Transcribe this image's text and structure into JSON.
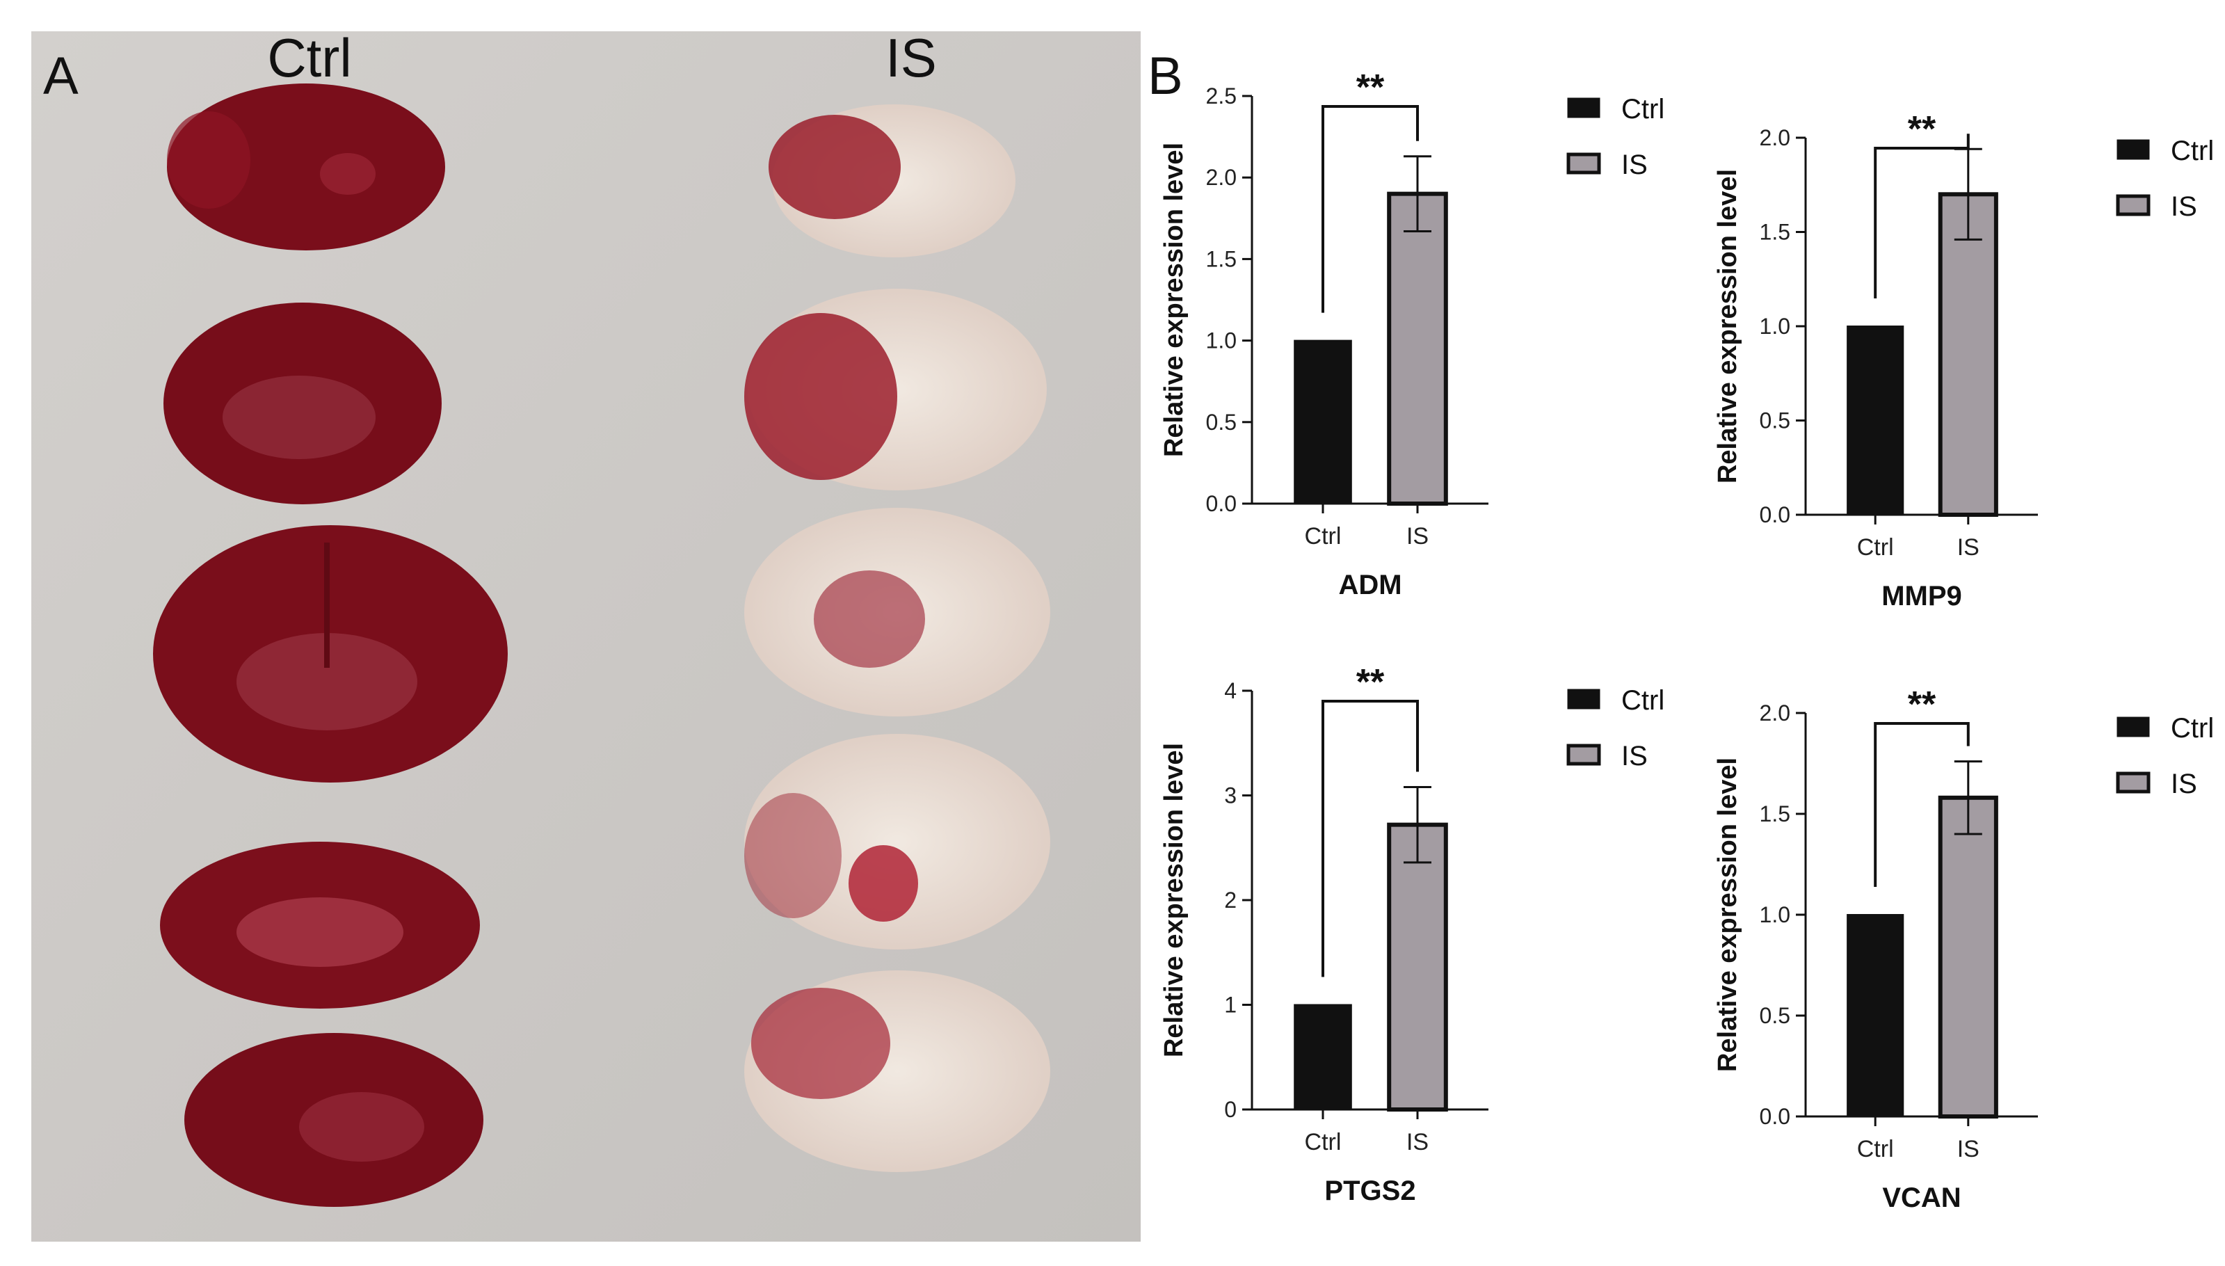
{
  "panel_a": {
    "letter": "A",
    "group_labels": [
      "Ctrl",
      "IS"
    ],
    "colors": {
      "background": "#ccc9c6",
      "healthy_tissue": "#7e0f1c",
      "infarct": "#ece3da"
    }
  },
  "panel_b": {
    "letter": "B"
  },
  "colors": {
    "ctrl_bar": "#111111",
    "is_bar": "#a39ca2",
    "axis": "#111111"
  },
  "chart_data": [
    {
      "type": "bar",
      "title": "ADM",
      "ylabel": "Relative expression level",
      "categories": [
        "Ctrl",
        "IS"
      ],
      "values": [
        1.0,
        1.9
      ],
      "errors": [
        0,
        0.23
      ],
      "ylim": [
        0,
        2.5
      ],
      "yticks": [
        "0.0",
        "0.5",
        "1.0",
        "1.5",
        "2.0",
        "2.5"
      ],
      "significance": "**",
      "legend": [
        "Ctrl",
        "IS"
      ]
    },
    {
      "type": "bar",
      "title": "MMP9",
      "ylabel": "Relative expression level",
      "categories": [
        "Ctrl",
        "IS"
      ],
      "values": [
        1.0,
        1.7
      ],
      "errors": [
        0,
        0.24
      ],
      "ylim": [
        0,
        2.0
      ],
      "yticks": [
        "0.0",
        "0.5",
        "1.0",
        "1.5",
        "2.0"
      ],
      "significance": "**",
      "legend": [
        "Ctrl",
        "IS"
      ]
    },
    {
      "type": "bar",
      "title": "PTGS2",
      "ylabel": "Relative expression level",
      "categories": [
        "Ctrl",
        "IS"
      ],
      "values": [
        1.0,
        2.72
      ],
      "errors": [
        0,
        0.36
      ],
      "ylim": [
        0,
        4
      ],
      "yticks": [
        "0",
        "1",
        "2",
        "3",
        "4"
      ],
      "significance": "**",
      "legend": [
        "Ctrl",
        "IS"
      ]
    },
    {
      "type": "bar",
      "title": "VCAN",
      "ylabel": "Relative expression level",
      "categories": [
        "Ctrl",
        "IS"
      ],
      "values": [
        1.0,
        1.58
      ],
      "errors": [
        0,
        0.18
      ],
      "ylim": [
        0,
        2.0
      ],
      "yticks": [
        "0.0",
        "0.5",
        "1.0",
        "1.5",
        "2.0"
      ],
      "significance": "**",
      "legend": [
        "Ctrl",
        "IS"
      ]
    }
  ]
}
